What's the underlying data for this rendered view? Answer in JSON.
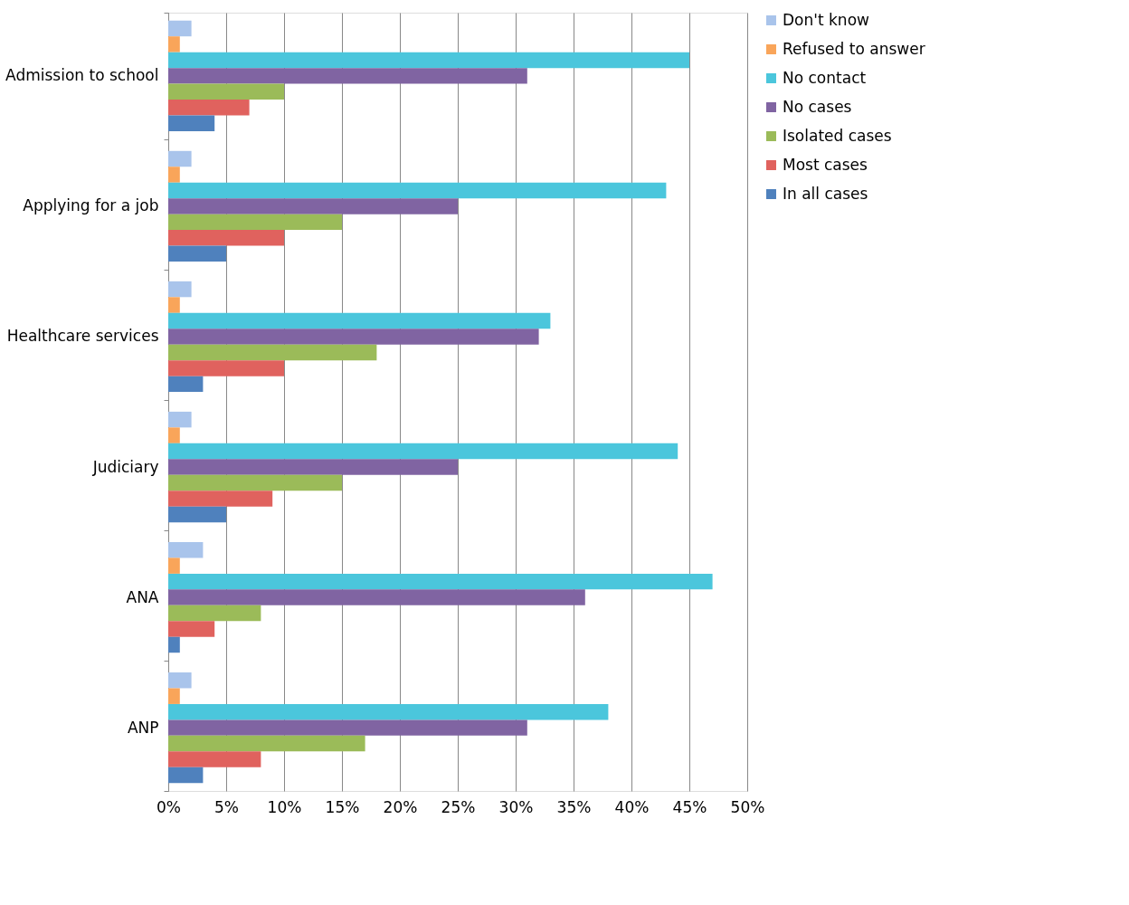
{
  "chart_data": {
    "type": "bar",
    "orientation": "horizontal",
    "categories": [
      "Admission to school",
      "Applying for a job",
      "Healthcare services",
      "Judiciary",
      "ANA",
      "ANP"
    ],
    "series": [
      {
        "name": "Don't know",
        "color": "#a9c4eb",
        "values": [
          2,
          2,
          2,
          2,
          3,
          2
        ]
      },
      {
        "name": "Refused to answer",
        "color": "#f9a55a",
        "values": [
          1,
          1,
          1,
          1,
          1,
          1
        ]
      },
      {
        "name": "No contact",
        "color": "#4bc6dc",
        "values": [
          45,
          43,
          33,
          44,
          47,
          38
        ]
      },
      {
        "name": "No cases",
        "color": "#8064a2",
        "values": [
          31,
          25,
          32,
          25,
          36,
          31
        ]
      },
      {
        "name": "Isolated cases",
        "color": "#9bbb59",
        "values": [
          10,
          15,
          18,
          15,
          8,
          17
        ]
      },
      {
        "name": "Most cases",
        "color": "#e0625e",
        "values": [
          7,
          10,
          10,
          9,
          4,
          8
        ]
      },
      {
        "name": "In all cases",
        "color": "#4f81bd",
        "values": [
          4,
          5,
          3,
          5,
          1,
          3
        ]
      }
    ],
    "xlim": [
      0,
      50
    ],
    "xticks": [
      {
        "value": 0,
        "label": "0%"
      },
      {
        "value": 5,
        "label": "5%"
      },
      {
        "value": 10,
        "label": "10%"
      },
      {
        "value": 15,
        "label": "15%"
      },
      {
        "value": 20,
        "label": "20%"
      },
      {
        "value": 25,
        "label": "25%"
      },
      {
        "value": 30,
        "label": "30%"
      },
      {
        "value": 35,
        "label": "35%"
      },
      {
        "value": 40,
        "label": "40%"
      },
      {
        "value": 45,
        "label": "45%"
      },
      {
        "value": 50,
        "label": "50%"
      }
    ],
    "grid": "x",
    "legend": "right"
  }
}
